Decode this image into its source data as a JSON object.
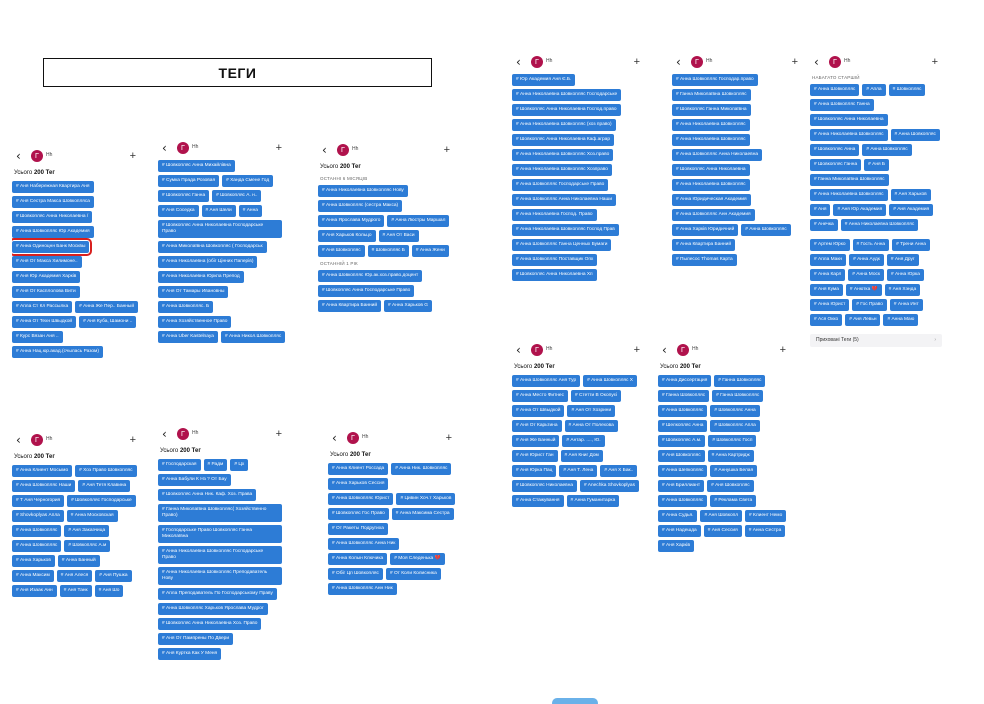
{
  "heading": "ТЕГИ",
  "user": {
    "avatar_letter": "Г",
    "name": "Hh"
  },
  "icons": {
    "back": "chevron-left-icon",
    "add": "plus-icon",
    "hidden": "chevron-right-icon"
  },
  "colors": {
    "tag": "#2d7cd6",
    "highlight": "#d8201e",
    "avatar": "#b0124c"
  },
  "panels": [
    {
      "count_label": "Усього",
      "count_value": "200 Тег",
      "sections": [
        {
          "title": "",
          "tags": [
            "# Аня Набережная Квартира Аня",
            "# Аня Сестра Макса Шовкопляса",
            "# Шовкопляс Анна Николаевна /",
            "# Анна Шовкопляс Юр Академия",
            "# Анна Одиноцнн Банк Москвы",
            "# Аня От Макса Хилимоне..",
            "# Аня Юр Академия Харків",
            "# Аня От Касплолова Вити",
            "# Апла Ст Кл Рассылка",
            "# Аннa Же Пер.. Банный",
            "# Анна От Техн Швыдкой",
            "# Аня Куба, Шамони ..",
            "# Курс Вязан Аня ..",
            "# Анна Нац.юр.акад.(счылась Разом)"
          ]
        }
      ],
      "highlight_index": 4
    },
    {
      "count_label": "",
      "count_value": "",
      "sections": [
        {
          "title": "",
          "tags": [
            "# Шовкопляс Анна Михайлівна",
            "# Сумка Прада Розовая",
            "# Ханда Смене Год",
            "# Шовкопляс Ганна",
            "# Шовкопляс А. н..",
            "# Аня Соседка",
            "# Аня Шели",
            "# Анна",
            "# Шовкопляс Анна Николаевна Господарське Право",
            "# Анна Миколаївна Шовкопляс ( Господарськ",
            "# Анна Николаевна (обіг Цінних Паперів)",
            "# Анна Николаевна Юркпа Препод",
            "# Аня От Тамары Ивановны",
            "# Анна Шовкопляс. Б",
            "# Анна Хозяйственное Право",
            "# Анна Uber Kastelnaya",
            "# Анна Никол.Шовкопляс"
          ]
        }
      ]
    },
    {
      "count_label": "Усього",
      "count_value": "200 Тег",
      "sections": [
        {
          "title": "ОСТАННІ 6 МІСЯЦІВ",
          "tags": [
            "# Анна Николаевна Шовкопляс Нову",
            "# Анна Шовкопляс (сестра Макса)",
            "# Анна Ярослава Мудрого",
            "# Анна Люстры Маршал",
            "# Аня Харьков Кольцо",
            "# Аня От Васи",
            "# Аня Шовкопляс",
            "# Шовкопляс Б",
            "# Анна Жени"
          ]
        },
        {
          "title": "ОСТАННІЙ 1 РІК",
          "tags": [
            "# Анна Шовкопляс Юр.ак.хоз.право.доцент",
            "# Шовкопляс Анна Господарське Право",
            "# Анна Квартира Банний",
            "# Анна Харьков G"
          ]
        }
      ]
    },
    {
      "count_label": "Усього",
      "count_value": "200 Тег",
      "sections": [
        {
          "title": "",
          "tags": [
            "# Анна Клиент Мосымо",
            "# Хоз Право Шовкопляс",
            "# Анна Шовкопляс Наши",
            "# Аня Тетя Клавина",
            "# Т Аня Черногория",
            "# Шовкопляс Господарське",
            "# Shovkoplyas Апла",
            "# Анна Московская",
            "# Анна Шовкопляс",
            "# Аня Заказчица",
            "# Анна Шовкопляс",
            "# Шовкопляс А.м",
            "# Анна Харьков",
            "# Анна Банный",
            "# Анна Максим",
            "# Аня Алеся",
            "# Аня Пушка",
            "# Аня Изаак Анн",
            "# Аня Танк",
            "# Аня Шо"
          ]
        }
      ]
    },
    {
      "count_label": "Усього",
      "count_value": "200 Тег",
      "sections": [
        {
          "title": "",
          "tags": [
            "# Господарская",
            "# Радм",
            "# Цх",
            "# Анна Бабули К Нз ? От Бау",
            "# Шовкопляс Анна Ник. Каф. Хоз. Права",
            "# Ганна Миколаївна Шовкопляс( Хозяйственно Право)",
            "# Господарське Право Шовкопляс Ганна Миколаївна",
            "# Анна Николаевна Шовкопляс Господарське Право",
            "# Анна Николаевна Шовкопляс Преподаватель Нову",
            "# Апла Преподаватель По Господарському Праву",
            "# Анна Шовкопляс Харьков Ярослава Мудрог",
            "# Шовкопляс Анна Николаевна Хоз. Право",
            "# Аня От Пампрены По Двери",
            "# Аня Куртка Как У Меня"
          ]
        }
      ]
    },
    {
      "count_label": "Усього",
      "count_value": "200 Тег",
      "sections": [
        {
          "title": "",
          "tags": [
            "# Анна Клиент Россада",
            "# Анна Ник. Шовкопляс",
            "# Анна Харьков Сессия",
            "# Анна Шовкопляс Юрист",
            "# Цивин Хоч.т Харьков",
            "# Шовкопляс Гос Право",
            "# Анна Максима Сестра",
            "# От Ракеты Подругиха",
            "# Анна Шовкопляс Анна Ник",
            "# Анна Колын Ключика",
            "# Моя Следенька 💔",
            "# Обіг Цп Шовкопляс",
            "# От Коли Колисника",
            "# Анна Шовкопляс Анн Ник"
          ]
        }
      ]
    },
    {
      "count_label": "",
      "count_value": "",
      "sections": [
        {
          "title": "",
          "tags": [
            "# Юр Академия Аня Є.Б.",
            "# Анна Николаевна Шовкопляс Господарське",
            "# Шовкопляс Анна Николаевна Господ.право",
            "# Анна Николаевна Шовкопляс (хоз право)",
            "# Шовкопляс Анна Николаевна Каф.аграр",
            "# Анна Николаевна Шовкопляс Хоз.право",
            "# Анна Николаевна Шовкопляс Хозправо",
            "# Анна Шовкопляс Господарське Право",
            "# Анна Шовкопляс Анна Николаевна Наши",
            "# Анна Николаевна Господ. Право",
            "# Анна Николаевна Шовкопляс Господ Прав",
            "# Анна Шовкопляс Ганна Ценных Бумаги",
            "# Анна Шовкопляс Поставщик Опх",
            "# Шовкопляс Анна Николаевна Хп"
          ]
        }
      ]
    },
    {
      "count_label": "",
      "count_value": "",
      "sections": [
        {
          "title": "",
          "tags": [
            "# Анна Шовкопляс Господар.право",
            "# Ганна Миколаївна Шовкопляс",
            "# Шовкопляс Ганна Миколаївна",
            "# Анна Николаевна Шовкопляс",
            "# Анна Николаевна Шовкопляс",
            "# Анна Шовкопляс Анна Николаевна",
            "# Шовкопляс Анна Николаевна",
            "# Анна Николаевна Шовкопляс",
            "# Анна Юридическая Академия",
            "# Анна Шовкопляс Анн Академия",
            "# Анна Харків Юридичний",
            "# Анна Шовкопляс",
            "# Анна Квартира Банний",
            "# Пылесос Thomas Карта"
          ]
        }
      ]
    },
    {
      "count_label": "",
      "count_value": "",
      "sections": [
        {
          "title": "НАБАГАТО СТАРШІЙ",
          "tags": [
            "# Анна Шовкопляс",
            "# Апла",
            "# Шовкопляс",
            "# Анна Шовкопляс Ганна",
            "# Шовкопляс Анна Николаевна",
            "# Анна Николаевна Шовкопляс",
            "# Анна Шовкопляс",
            "# Шовкопляс Анна",
            "# Анна Шовкопляс",
            "# Шовкопляс Ганна",
            "# Аня Б",
            "# Ганна Миколаївна Шовкопляс",
            "# Анна Николаевна Шовкопляс",
            "# Аня Харьков",
            "# Аня",
            "# Аня Юр Академия",
            "# Аня Академия",
            "# Анечка",
            "# Анна Николаевна Шовкопляс"
          ]
        },
        {
          "title": "",
          "tags": [
            "# Артем Юрко",
            "# Гость Анна",
            "# Трени Анна",
            "# Апла Макн",
            "# Анна Аудк",
            "# Аня Друг",
            "# Анна Карл",
            "# Анна Моск",
            "# Анна Юрка",
            "# Аня Кума",
            "# Анютка 💔",
            "# Аня Хэнда",
            "# Анна Юрист",
            "# Гос Право",
            "# Анна Инт",
            "# Ася Окко",
            "# Аня Левьн",
            "# Анна Маю"
          ]
        }
      ],
      "hidden_label": "Приховані Теги (5)"
    },
    {
      "count_label": "Усього",
      "count_value": "200 Тег",
      "sections": [
        {
          "title": "",
          "tags": [
            "# Анна Шовкопляс Аня Тур",
            "# Анна Шовкопляс Х",
            "# Анна Место Фитнес",
            "# Стетти В Окопуєі",
            "# Анна От Швыдкой",
            "# Аня От Хозрини",
            "# Аня От Карьтина",
            "# Анна От Полехова",
            "# Аня Же Банный",
            "# Антар. ...., Ю.",
            "# Аня Юрист Ган",
            "# Аня Книг Дом",
            "# Аня Юрка Пац",
            "# Аня Т. Лена",
            "# Аня Х Бак..",
            "# Шовкопляс Николаевна",
            "# Anechka Shovkoplyas",
            "# Анна Стажування",
            "# Анна Гуманитарка"
          ]
        }
      ]
    },
    {
      "count_label": "Усього",
      "count_value": "200 Тег",
      "sections": [
        {
          "title": "",
          "tags": [
            "# Анна Диссертация",
            "# Ганна Шовкопляс",
            "# Ганна Шовкопляс",
            "# Ганна Шовкопляс",
            "# Анна Шовкопляс",
            "# Шовкопляс Анна",
            "# Шелкопляс Анна",
            "# Шовкопляс Апла",
            "# Шовкопляс А.м.",
            "# Шовкопляс Госп",
            "# Аня Шовкопляс",
            "# Анна Картридж",
            "# Анна Шепкопляс",
            "# Аннушка Белая",
            "# Аня Бриллиант",
            "# Аня Шовкопляс",
            "# Анна Шовкопляс",
            "# Реклама Света",
            "# Анна Судья.",
            "# Аня Шовкопл",
            "# Клиент Немо",
            "# Аня Надешда",
            "# Аня Сессия",
            "# Анна Сестра",
            "# Аня Харків"
          ]
        }
      ]
    }
  ]
}
